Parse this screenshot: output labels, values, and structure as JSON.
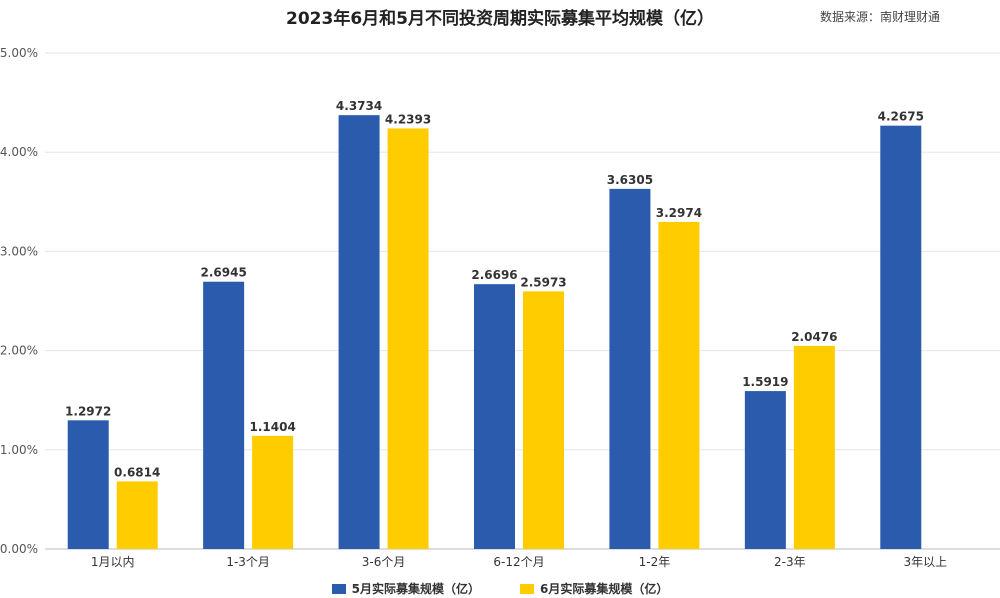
{
  "chart_data": {
    "type": "bar",
    "title": "2023年6月和5月不同投资周期实际募集平均规模（亿）",
    "source": "数据来源：南财理财通",
    "categories": [
      "1月以内",
      "1-3个月",
      "3-6个月",
      "6-12个月",
      "1-2年",
      "2-3年",
      "3年以上"
    ],
    "series": [
      {
        "name": "5月实际募集规模（亿）",
        "color": "#2a5bad",
        "values": [
          1.2972,
          2.6945,
          4.3734,
          2.6696,
          3.6305,
          1.5919,
          4.2675
        ],
        "labels": [
          "1.2972",
          "2.6945",
          "4.3734",
          "2.6696",
          "3.6305",
          "1.5919",
          "4.2675"
        ]
      },
      {
        "name": "6月实际募集规模（亿）",
        "color": "#ffcc00",
        "values": [
          0.6814,
          1.1404,
          4.2393,
          2.5973,
          3.2974,
          2.0476,
          null
        ],
        "labels": [
          "0.6814",
          "1.1404",
          "4.2393",
          "2.5973",
          "3.2974",
          "2.0476",
          null
        ]
      }
    ],
    "yticks": [
      "0.00%",
      "1.00%",
      "2.00%",
      "3.00%",
      "4.00%",
      "5.00%"
    ],
    "ylim": [
      0,
      5
    ],
    "grid": true,
    "legend_position": "bottom"
  }
}
